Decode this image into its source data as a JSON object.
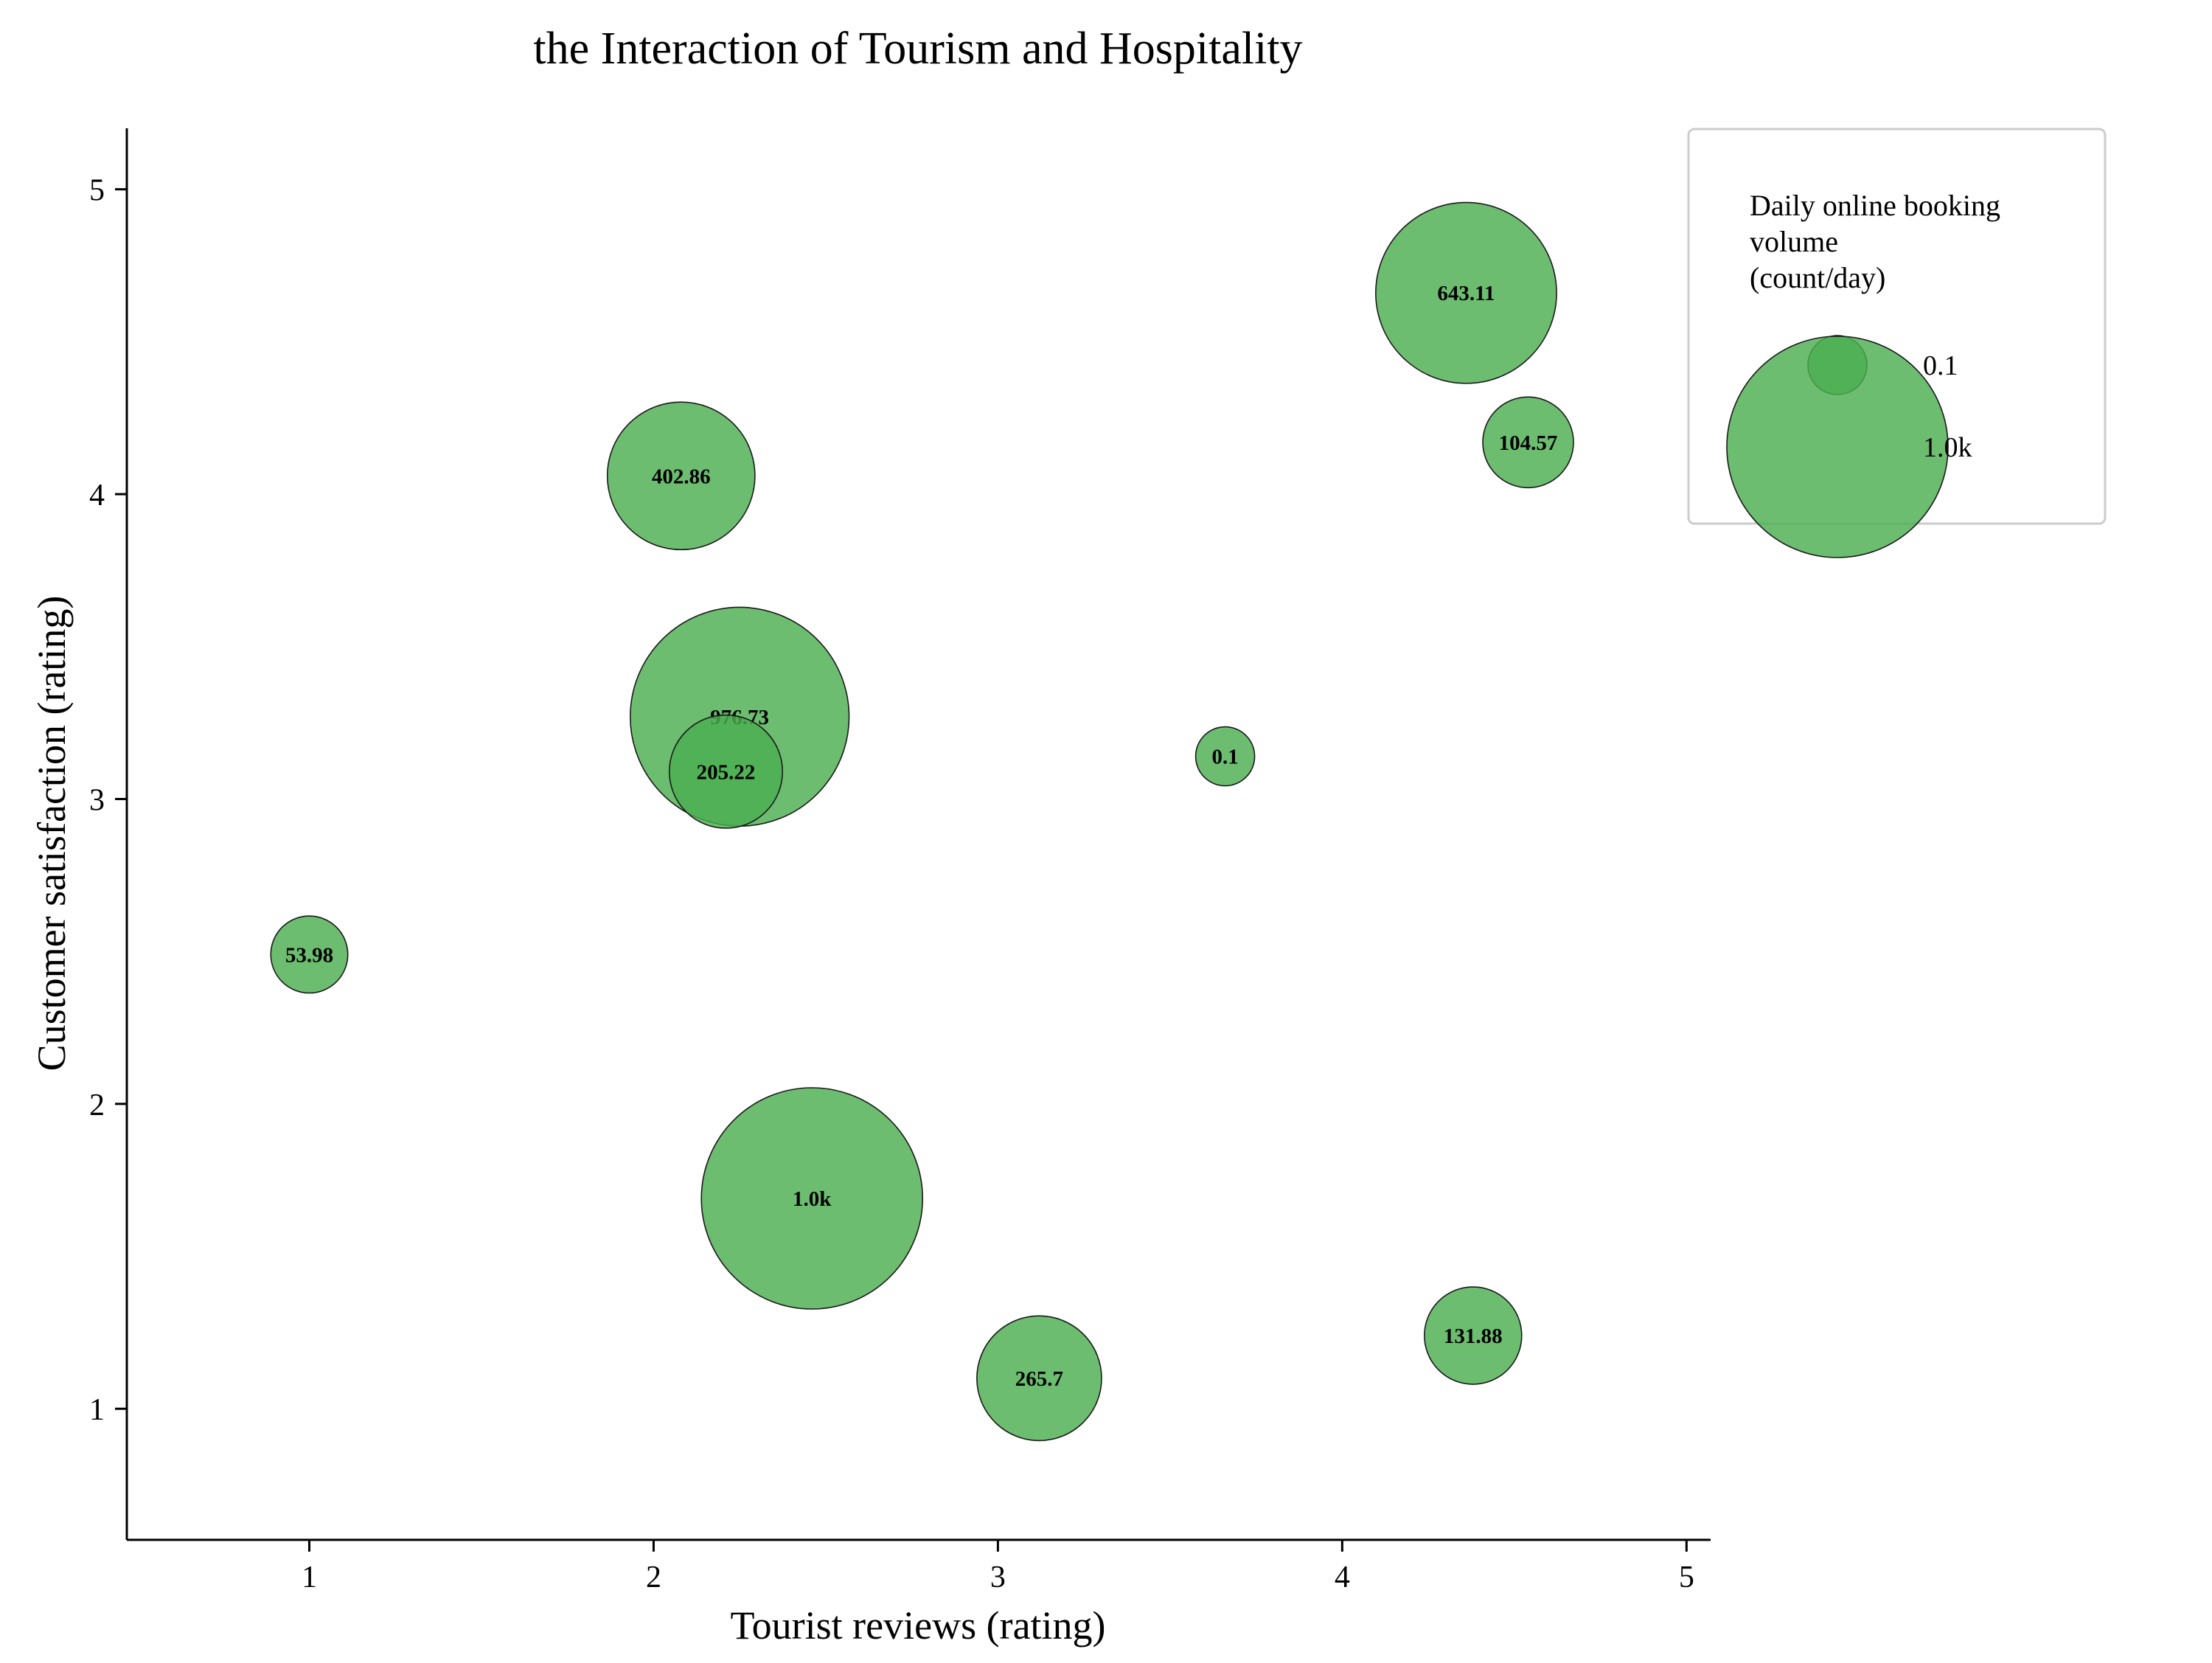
{
  "chart_data": {
    "type": "scatter",
    "title": "the Interaction of Tourism and Hospitality",
    "xlabel": "Tourist reviews (rating)",
    "ylabel": "Customer satisfaction (rating)",
    "xlim": [
      0.47,
      5.07
    ],
    "ylim": [
      0.57,
      5.2
    ],
    "xticks": [
      "1",
      "2",
      "3",
      "4",
      "5"
    ],
    "yticks": [
      "1",
      "2",
      "3",
      "4",
      "5"
    ],
    "grid": false,
    "size_encoding": "Daily online booking volume (count/day)",
    "points": [
      {
        "x": 1.0,
        "y": 2.49,
        "size": 53.98,
        "label": "53.98"
      },
      {
        "x": 2.08,
        "y": 4.06,
        "size": 402.86,
        "label": "402.86"
      },
      {
        "x": 2.25,
        "y": 3.27,
        "size": 976.73,
        "label": "976.73"
      },
      {
        "x": 2.21,
        "y": 3.09,
        "size": 205.22,
        "label": "205.22"
      },
      {
        "x": 2.46,
        "y": 1.69,
        "size": 1000,
        "label": "1.0k"
      },
      {
        "x": 3.12,
        "y": 1.1,
        "size": 265.7,
        "label": "265.7"
      },
      {
        "x": 3.66,
        "y": 3.14,
        "size": 0.1,
        "label": "0.1"
      },
      {
        "x": 4.36,
        "y": 4.66,
        "size": 643.11,
        "label": "643.11"
      },
      {
        "x": 4.54,
        "y": 4.17,
        "size": 104.57,
        "label": "104.57"
      },
      {
        "x": 4.38,
        "y": 1.24,
        "size": 131.88,
        "label": "131.88"
      }
    ],
    "legend": {
      "position": "upper-right",
      "title_lines": [
        "Daily online booking",
        "volume",
        "(count/day)"
      ],
      "entries": [
        {
          "label": "0.1",
          "size": 0.1
        },
        {
          "label": "1.0k",
          "size": 1000
        }
      ]
    },
    "colors": {
      "bubble_fill": "#4caf50",
      "bubble_stroke": "#1a1a1a",
      "axis": "#000000",
      "legend_border": "#cccccc"
    }
  }
}
